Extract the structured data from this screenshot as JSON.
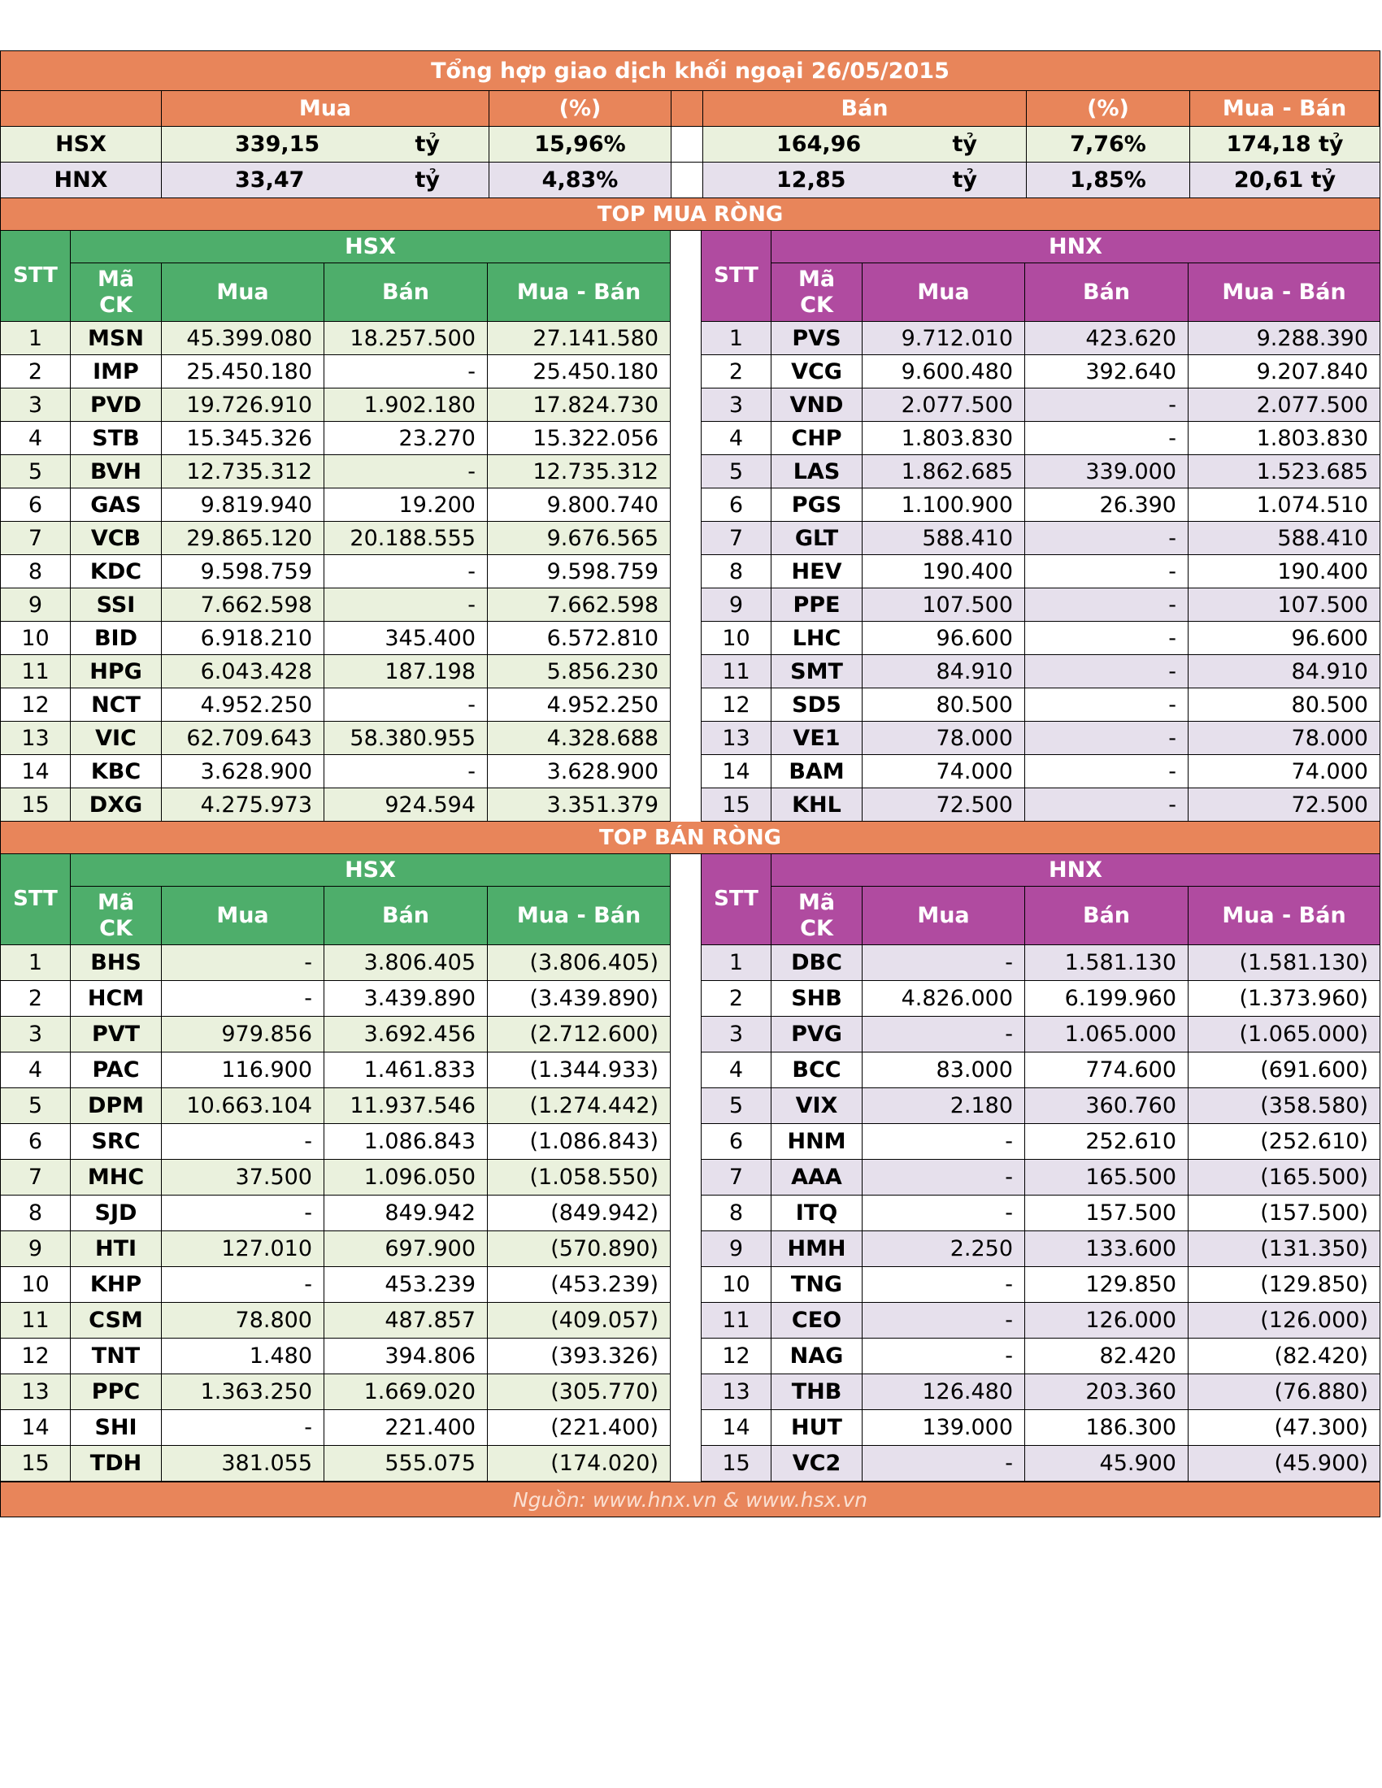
{
  "title": "Tổng hợp giao dịch khối ngoại 26/05/2015",
  "summary": {
    "headers": {
      "mua": "Mua",
      "mua_pct": "(%)",
      "ban": "Bán",
      "ban_pct": "(%)",
      "net": "Mua - Bán"
    },
    "unit": "tỷ",
    "rows": [
      {
        "exchange": "HSX",
        "mua": "339,15",
        "mua_pct": "15,96%",
        "ban": "164,96",
        "ban_pct": "7,76%",
        "net": "174,18 tỷ"
      },
      {
        "exchange": "HNX",
        "mua": "33,47",
        "mua_pct": "4,83%",
        "ban": "12,85",
        "ban_pct": "1,85%",
        "net": "20,61 tỷ"
      }
    ]
  },
  "top_buy": {
    "title": "TOP MUA RÒNG",
    "headers": {
      "stt": "STT",
      "ma": "Mã CK",
      "mua": "Mua",
      "ban": "Bán",
      "net": "Mua - Bán"
    },
    "hsx": {
      "label": "HSX",
      "rows": [
        [
          "1",
          "MSN",
          "45.399.080",
          "18.257.500",
          "27.141.580"
        ],
        [
          "2",
          "IMP",
          "25.450.180",
          "-",
          "25.450.180"
        ],
        [
          "3",
          "PVD",
          "19.726.910",
          "1.902.180",
          "17.824.730"
        ],
        [
          "4",
          "STB",
          "15.345.326",
          "23.270",
          "15.322.056"
        ],
        [
          "5",
          "BVH",
          "12.735.312",
          "-",
          "12.735.312"
        ],
        [
          "6",
          "GAS",
          "9.819.940",
          "19.200",
          "9.800.740"
        ],
        [
          "7",
          "VCB",
          "29.865.120",
          "20.188.555",
          "9.676.565"
        ],
        [
          "8",
          "KDC",
          "9.598.759",
          "-",
          "9.598.759"
        ],
        [
          "9",
          "SSI",
          "7.662.598",
          "-",
          "7.662.598"
        ],
        [
          "10",
          "BID",
          "6.918.210",
          "345.400",
          "6.572.810"
        ],
        [
          "11",
          "HPG",
          "6.043.428",
          "187.198",
          "5.856.230"
        ],
        [
          "12",
          "NCT",
          "4.952.250",
          "-",
          "4.952.250"
        ],
        [
          "13",
          "VIC",
          "62.709.643",
          "58.380.955",
          "4.328.688"
        ],
        [
          "14",
          "KBC",
          "3.628.900",
          "-",
          "3.628.900"
        ],
        [
          "15",
          "DXG",
          "4.275.973",
          "924.594",
          "3.351.379"
        ]
      ]
    },
    "hnx": {
      "label": "HNX",
      "rows": [
        [
          "1",
          "PVS",
          "9.712.010",
          "423.620",
          "9.288.390"
        ],
        [
          "2",
          "VCG",
          "9.600.480",
          "392.640",
          "9.207.840"
        ],
        [
          "3",
          "VND",
          "2.077.500",
          "-",
          "2.077.500"
        ],
        [
          "4",
          "CHP",
          "1.803.830",
          "-",
          "1.803.830"
        ],
        [
          "5",
          "LAS",
          "1.862.685",
          "339.000",
          "1.523.685"
        ],
        [
          "6",
          "PGS",
          "1.100.900",
          "26.390",
          "1.074.510"
        ],
        [
          "7",
          "GLT",
          "588.410",
          "-",
          "588.410"
        ],
        [
          "8",
          "HEV",
          "190.400",
          "-",
          "190.400"
        ],
        [
          "9",
          "PPE",
          "107.500",
          "-",
          "107.500"
        ],
        [
          "10",
          "LHC",
          "96.600",
          "-",
          "96.600"
        ],
        [
          "11",
          "SMT",
          "84.910",
          "-",
          "84.910"
        ],
        [
          "12",
          "SD5",
          "80.500",
          "-",
          "80.500"
        ],
        [
          "13",
          "VE1",
          "78.000",
          "-",
          "78.000"
        ],
        [
          "14",
          "BAM",
          "74.000",
          "-",
          "74.000"
        ],
        [
          "15",
          "KHL",
          "72.500",
          "-",
          "72.500"
        ]
      ]
    }
  },
  "top_sell": {
    "title": "TOP BÁN RÒNG",
    "headers": {
      "stt": "STT",
      "ma": "Mã CK",
      "mua": "Mua",
      "ban": "Bán",
      "net": "Mua - Bán"
    },
    "hsx": {
      "label": "HSX",
      "rows": [
        [
          "1",
          "BHS",
          "-",
          "3.806.405",
          "(3.806.405)"
        ],
        [
          "2",
          "HCM",
          "-",
          "3.439.890",
          "(3.439.890)"
        ],
        [
          "3",
          "PVT",
          "979.856",
          "3.692.456",
          "(2.712.600)"
        ],
        [
          "4",
          "PAC",
          "116.900",
          "1.461.833",
          "(1.344.933)"
        ],
        [
          "5",
          "DPM",
          "10.663.104",
          "11.937.546",
          "(1.274.442)"
        ],
        [
          "6",
          "SRC",
          "-",
          "1.086.843",
          "(1.086.843)"
        ],
        [
          "7",
          "MHC",
          "37.500",
          "1.096.050",
          "(1.058.550)"
        ],
        [
          "8",
          "SJD",
          "-",
          "849.942",
          "(849.942)"
        ],
        [
          "9",
          "HTI",
          "127.010",
          "697.900",
          "(570.890)"
        ],
        [
          "10",
          "KHP",
          "-",
          "453.239",
          "(453.239)"
        ],
        [
          "11",
          "CSM",
          "78.800",
          "487.857",
          "(409.057)"
        ],
        [
          "12",
          "TNT",
          "1.480",
          "394.806",
          "(393.326)"
        ],
        [
          "13",
          "PPC",
          "1.363.250",
          "1.669.020",
          "(305.770)"
        ],
        [
          "14",
          "SHI",
          "-",
          "221.400",
          "(221.400)"
        ],
        [
          "15",
          "TDH",
          "381.055",
          "555.075",
          "(174.020)"
        ]
      ]
    },
    "hnx": {
      "label": "HNX",
      "rows": [
        [
          "1",
          "DBC",
          "-",
          "1.581.130",
          "(1.581.130)"
        ],
        [
          "2",
          "SHB",
          "4.826.000",
          "6.199.960",
          "(1.373.960)"
        ],
        [
          "3",
          "PVG",
          "-",
          "1.065.000",
          "(1.065.000)"
        ],
        [
          "4",
          "BCC",
          "83.000",
          "774.600",
          "(691.600)"
        ],
        [
          "5",
          "VIX",
          "2.180",
          "360.760",
          "(358.580)"
        ],
        [
          "6",
          "HNM",
          "-",
          "252.610",
          "(252.610)"
        ],
        [
          "7",
          "AAA",
          "-",
          "165.500",
          "(165.500)"
        ],
        [
          "8",
          "ITQ",
          "-",
          "157.500",
          "(157.500)"
        ],
        [
          "9",
          "HMH",
          "2.250",
          "133.600",
          "(131.350)"
        ],
        [
          "10",
          "TNG",
          "-",
          "129.850",
          "(129.850)"
        ],
        [
          "11",
          "CEO",
          "-",
          "126.000",
          "(126.000)"
        ],
        [
          "12",
          "NAG",
          "-",
          "82.420",
          "(82.420)"
        ],
        [
          "13",
          "THB",
          "126.480",
          "203.360",
          "(76.880)"
        ],
        [
          "14",
          "HUT",
          "139.000",
          "186.300",
          "(47.300)"
        ],
        [
          "15",
          "VC2",
          "-",
          "45.900",
          "(45.900)"
        ]
      ]
    }
  },
  "footer": "Nguồn: www.hnx.vn   &   www.hsx.vn",
  "colors": {
    "orange": "#E8855A",
    "green": "#4EAE6B",
    "purple": "#B04BA0",
    "light_green": "#EAF1DD",
    "light_purple": "#E6E0EC"
  }
}
